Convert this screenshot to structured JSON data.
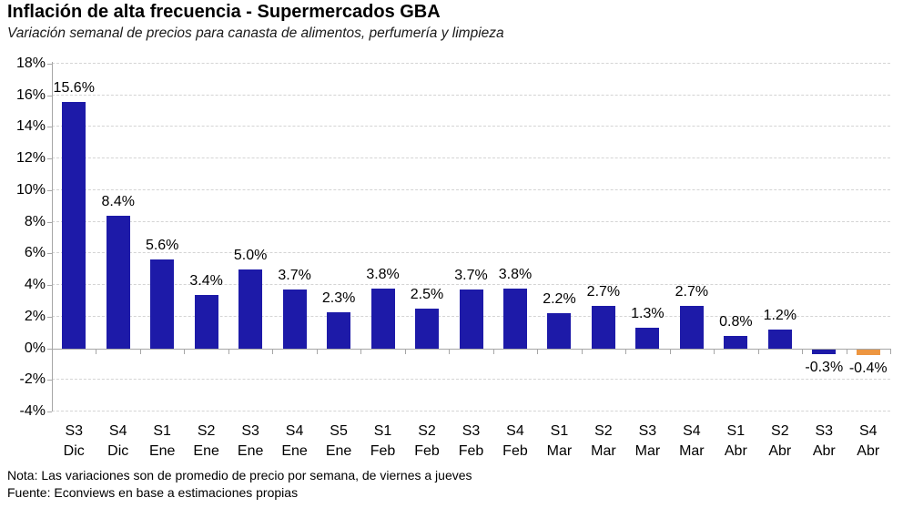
{
  "header": {
    "title": "Inflación de alta frecuencia - Supermercados GBA",
    "subtitle": "Variación semanal de precios para canasta de alimentos, perfumería y limpieza"
  },
  "footer": {
    "note": "Nota: Las variaciones son de promedio de precio por semana, de viernes a jueves",
    "source": "Fuente: Econviews en base a estimaciones propias"
  },
  "chart_data": {
    "type": "bar",
    "title": "Inflación de alta frecuencia - Supermercados GBA",
    "subtitle": "Variación semanal de precios para canasta de alimentos, perfumería y limpieza",
    "categories": [
      "S3 Dic",
      "S4 Dic",
      "S1 Ene",
      "S2 Ene",
      "S3 Ene",
      "S4 Ene",
      "S5 Ene",
      "S1 Feb",
      "S2 Feb",
      "S3 Feb",
      "S4 Feb",
      "S1 Mar",
      "S2 Mar",
      "S3 Mar",
      "S4 Mar",
      "S1 Abr",
      "S2 Abr",
      "S3 Abr",
      "S4 Abr"
    ],
    "values": [
      15.6,
      8.4,
      5.6,
      3.4,
      5.0,
      3.7,
      2.3,
      3.8,
      2.5,
      3.7,
      3.8,
      2.2,
      2.7,
      1.3,
      2.7,
      0.8,
      1.2,
      -0.3,
      -0.4
    ],
    "value_labels": [
      "15.6%",
      "8.4%",
      "5.6%",
      "3.4%",
      "5.0%",
      "3.7%",
      "2.3%",
      "3.8%",
      "2.5%",
      "3.7%",
      "3.8%",
      "2.2%",
      "2.7%",
      "1.3%",
      "2.7%",
      "0.8%",
      "1.2%",
      "-0.3%",
      "-0.4%"
    ],
    "unit": "%",
    "xlabel": "",
    "ylabel": "",
    "ylim": [
      -4,
      18
    ],
    "ytick_step": 2,
    "ytick_labels": [
      "18%",
      "16%",
      "14%",
      "12%",
      "10%",
      "8%",
      "6%",
      "4%",
      "2%",
      "0%",
      "-2%",
      "-4%"
    ],
    "grid": "horizontal-dashed",
    "legend": null,
    "colors": {
      "bar": "#1d1aa8",
      "highlight_bar": "#ed9641",
      "gridline": "#d4d4d4",
      "axis": "#a6a6a6"
    },
    "highlight_index": 18
  }
}
